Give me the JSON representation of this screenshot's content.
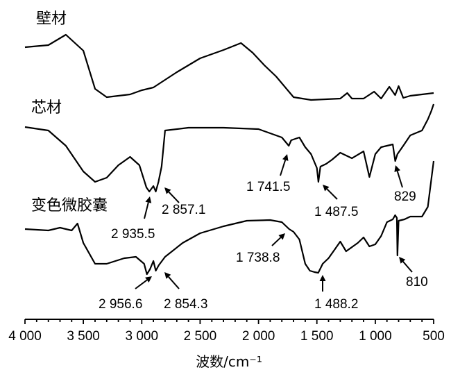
{
  "chart_data": {
    "type": "line",
    "xlabel": "波数/cm⁻¹",
    "ylabel": "",
    "xlim": [
      4000,
      500
    ],
    "x_reversed": true,
    "grid": false,
    "x_ticks": [
      {
        "value": 4000,
        "label": "4 000"
      },
      {
        "value": 3500,
        "label": "3 500"
      },
      {
        "value": 3000,
        "label": "3 000"
      },
      {
        "value": 2500,
        "label": "2 500"
      },
      {
        "value": 2000,
        "label": "2 000"
      },
      {
        "value": 1500,
        "label": "1 500"
      },
      {
        "value": 1000,
        "label": "1 000"
      },
      {
        "value": 500,
        "label": "500"
      }
    ],
    "series": [
      {
        "name": "壁材",
        "points": [
          [
            4000,
            68
          ],
          [
            3800,
            65
          ],
          [
            3650,
            50
          ],
          [
            3500,
            73
          ],
          [
            3400,
            128
          ],
          [
            3300,
            140
          ],
          [
            3100,
            136
          ],
          [
            3000,
            130
          ],
          [
            2900,
            126
          ],
          [
            2700,
            104
          ],
          [
            2500,
            84
          ],
          [
            2300,
            72
          ],
          [
            2150,
            62
          ],
          [
            2050,
            76
          ],
          [
            1950,
            94
          ],
          [
            1850,
            110
          ],
          [
            1700,
            140
          ],
          [
            1550,
            144
          ],
          [
            1300,
            142
          ],
          [
            1240,
            134
          ],
          [
            1200,
            142
          ],
          [
            1100,
            142
          ],
          [
            1010,
            132
          ],
          [
            950,
            142
          ],
          [
            880,
            125
          ],
          [
            830,
            137
          ],
          [
            800,
            124
          ],
          [
            760,
            141
          ],
          [
            700,
            138
          ],
          [
            600,
            136
          ],
          [
            500,
            134
          ]
        ]
      },
      {
        "name": "芯材",
        "points": [
          [
            4000,
            183
          ],
          [
            3800,
            188
          ],
          [
            3650,
            210
          ],
          [
            3500,
            247
          ],
          [
            3400,
            262
          ],
          [
            3300,
            256
          ],
          [
            3200,
            238
          ],
          [
            3100,
            226
          ],
          [
            3020,
            238
          ],
          [
            2960,
            270
          ],
          [
            2935,
            276
          ],
          [
            2900,
            268
          ],
          [
            2880,
            276
          ],
          [
            2857,
            262
          ],
          [
            2830,
            240
          ],
          [
            2800,
            188
          ],
          [
            2600,
            184
          ],
          [
            2300,
            184
          ],
          [
            2000,
            186
          ],
          [
            1800,
            198
          ],
          [
            1741,
            210
          ],
          [
            1720,
            202
          ],
          [
            1650,
            198
          ],
          [
            1600,
            212
          ],
          [
            1550,
            222
          ],
          [
            1500,
            242
          ],
          [
            1487,
            262
          ],
          [
            1470,
            240
          ],
          [
            1420,
            236
          ],
          [
            1370,
            230
          ],
          [
            1300,
            220
          ],
          [
            1200,
            228
          ],
          [
            1100,
            218
          ],
          [
            1050,
            255
          ],
          [
            1000,
            222
          ],
          [
            950,
            212
          ],
          [
            900,
            210
          ],
          [
            850,
            208
          ],
          [
            829,
            232
          ],
          [
            810,
            222
          ],
          [
            760,
            210
          ],
          [
            700,
            195
          ],
          [
            600,
            188
          ],
          [
            550,
            172
          ],
          [
            520,
            160
          ],
          [
            500,
            150
          ]
        ]
      },
      {
        "name": "变色微胶囊",
        "points": [
          [
            4000,
            330
          ],
          [
            3800,
            332
          ],
          [
            3700,
            328
          ],
          [
            3600,
            332
          ],
          [
            3550,
            322
          ],
          [
            3500,
            350
          ],
          [
            3400,
            380
          ],
          [
            3300,
            380
          ],
          [
            3150,
            372
          ],
          [
            3050,
            370
          ],
          [
            2980,
            380
          ],
          [
            2956,
            395
          ],
          [
            2930,
            388
          ],
          [
            2900,
            376
          ],
          [
            2880,
            390
          ],
          [
            2854,
            382
          ],
          [
            2800,
            370
          ],
          [
            2650,
            350
          ],
          [
            2500,
            336
          ],
          [
            2300,
            326
          ],
          [
            2100,
            318
          ],
          [
            1900,
            317
          ],
          [
            1800,
            320
          ],
          [
            1738,
            330
          ],
          [
            1700,
            334
          ],
          [
            1650,
            345
          ],
          [
            1600,
            380
          ],
          [
            1560,
            390
          ],
          [
            1520,
            392
          ],
          [
            1488,
            393
          ],
          [
            1450,
            380
          ],
          [
            1400,
            372
          ],
          [
            1350,
            360
          ],
          [
            1300,
            348
          ],
          [
            1250,
            362
          ],
          [
            1150,
            350
          ],
          [
            1100,
            342
          ],
          [
            1050,
            355
          ],
          [
            1000,
            352
          ],
          [
            950,
            340
          ],
          [
            900,
            320
          ],
          [
            850,
            316
          ],
          [
            830,
            310
          ],
          [
            815,
            314
          ],
          [
            810,
            368
          ],
          [
            800,
            318
          ],
          [
            750,
            316
          ],
          [
            700,
            312
          ],
          [
            600,
            312
          ],
          [
            550,
            298
          ],
          [
            500,
            232
          ]
        ]
      }
    ],
    "series_labels": [
      "壁材",
      "芯材",
      "变色微胶囊"
    ],
    "annotations": [
      {
        "text": "2 935.5",
        "series": "芯材"
      },
      {
        "text": "2 857.1",
        "series": "芯材"
      },
      {
        "text": "1 741.5",
        "series": "芯材"
      },
      {
        "text": "1 487.5",
        "series": "芯材"
      },
      {
        "text": "829",
        "series": "芯材"
      },
      {
        "text": "2 956.6",
        "series": "变色微胶囊"
      },
      {
        "text": "2 854.3",
        "series": "变色微胶囊"
      },
      {
        "text": "1 738.8",
        "series": "变色微胶囊"
      },
      {
        "text": "1 488.2",
        "series": "变色微胶囊"
      },
      {
        "text": "810",
        "series": "变色微胶囊"
      }
    ]
  }
}
